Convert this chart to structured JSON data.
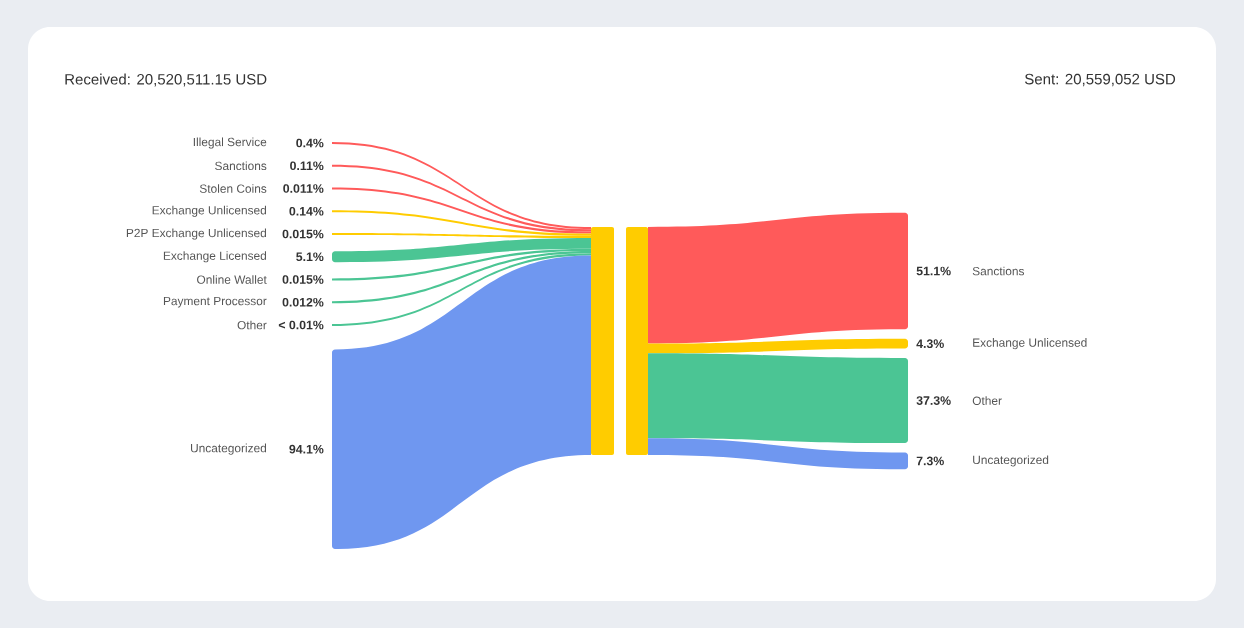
{
  "chart_data": [
    {
      "type": "other",
      "title": "Received: 20,520,511.15 USD",
      "categories": [
        "Illegal Service",
        "Sanctions",
        "Stolen Coins",
        "Exchange Unlicensed",
        "P2P Exchange Unlicensed",
        "Exchange Licensed",
        "Online Wallet",
        "Payment Processor",
        "Other",
        "Uncategorized"
      ],
      "values": [
        0.4,
        0.11,
        0.011,
        0.14,
        0.015,
        5.1,
        0.015,
        0.012,
        null,
        94.1
      ],
      "value_labels": [
        "0.4%",
        "0.11%",
        "0.011%",
        "0.14%",
        "0.015%",
        "5.1%",
        "0.015%",
        "0.012%",
        "< 0.01%",
        "94.1%"
      ],
      "colors": [
        "#ff5a5a",
        "#ff5a5a",
        "#ff5a5a",
        "#ffcc00",
        "#ffcc00",
        "#4bc594",
        "#4bc594",
        "#4bc594",
        "#4bc594",
        "#6f97f0"
      ],
      "color": "#ffcc00"
    },
    {
      "type": "other",
      "title": "Sent: 20,559,052 USD",
      "categories": [
        "Sanctions",
        "Exchange Unlicensed",
        "Other",
        "Uncategorized"
      ],
      "values": [
        51.1,
        4.3,
        37.3,
        7.3
      ],
      "value_labels": [
        "51.1%",
        "4.3%",
        "37.3%",
        "7.3%"
      ],
      "colors": [
        "#ff5a5a",
        "#ffcc00",
        "#4bc594",
        "#6f97f0"
      ],
      "color": "#ffcc00"
    }
  ]
}
